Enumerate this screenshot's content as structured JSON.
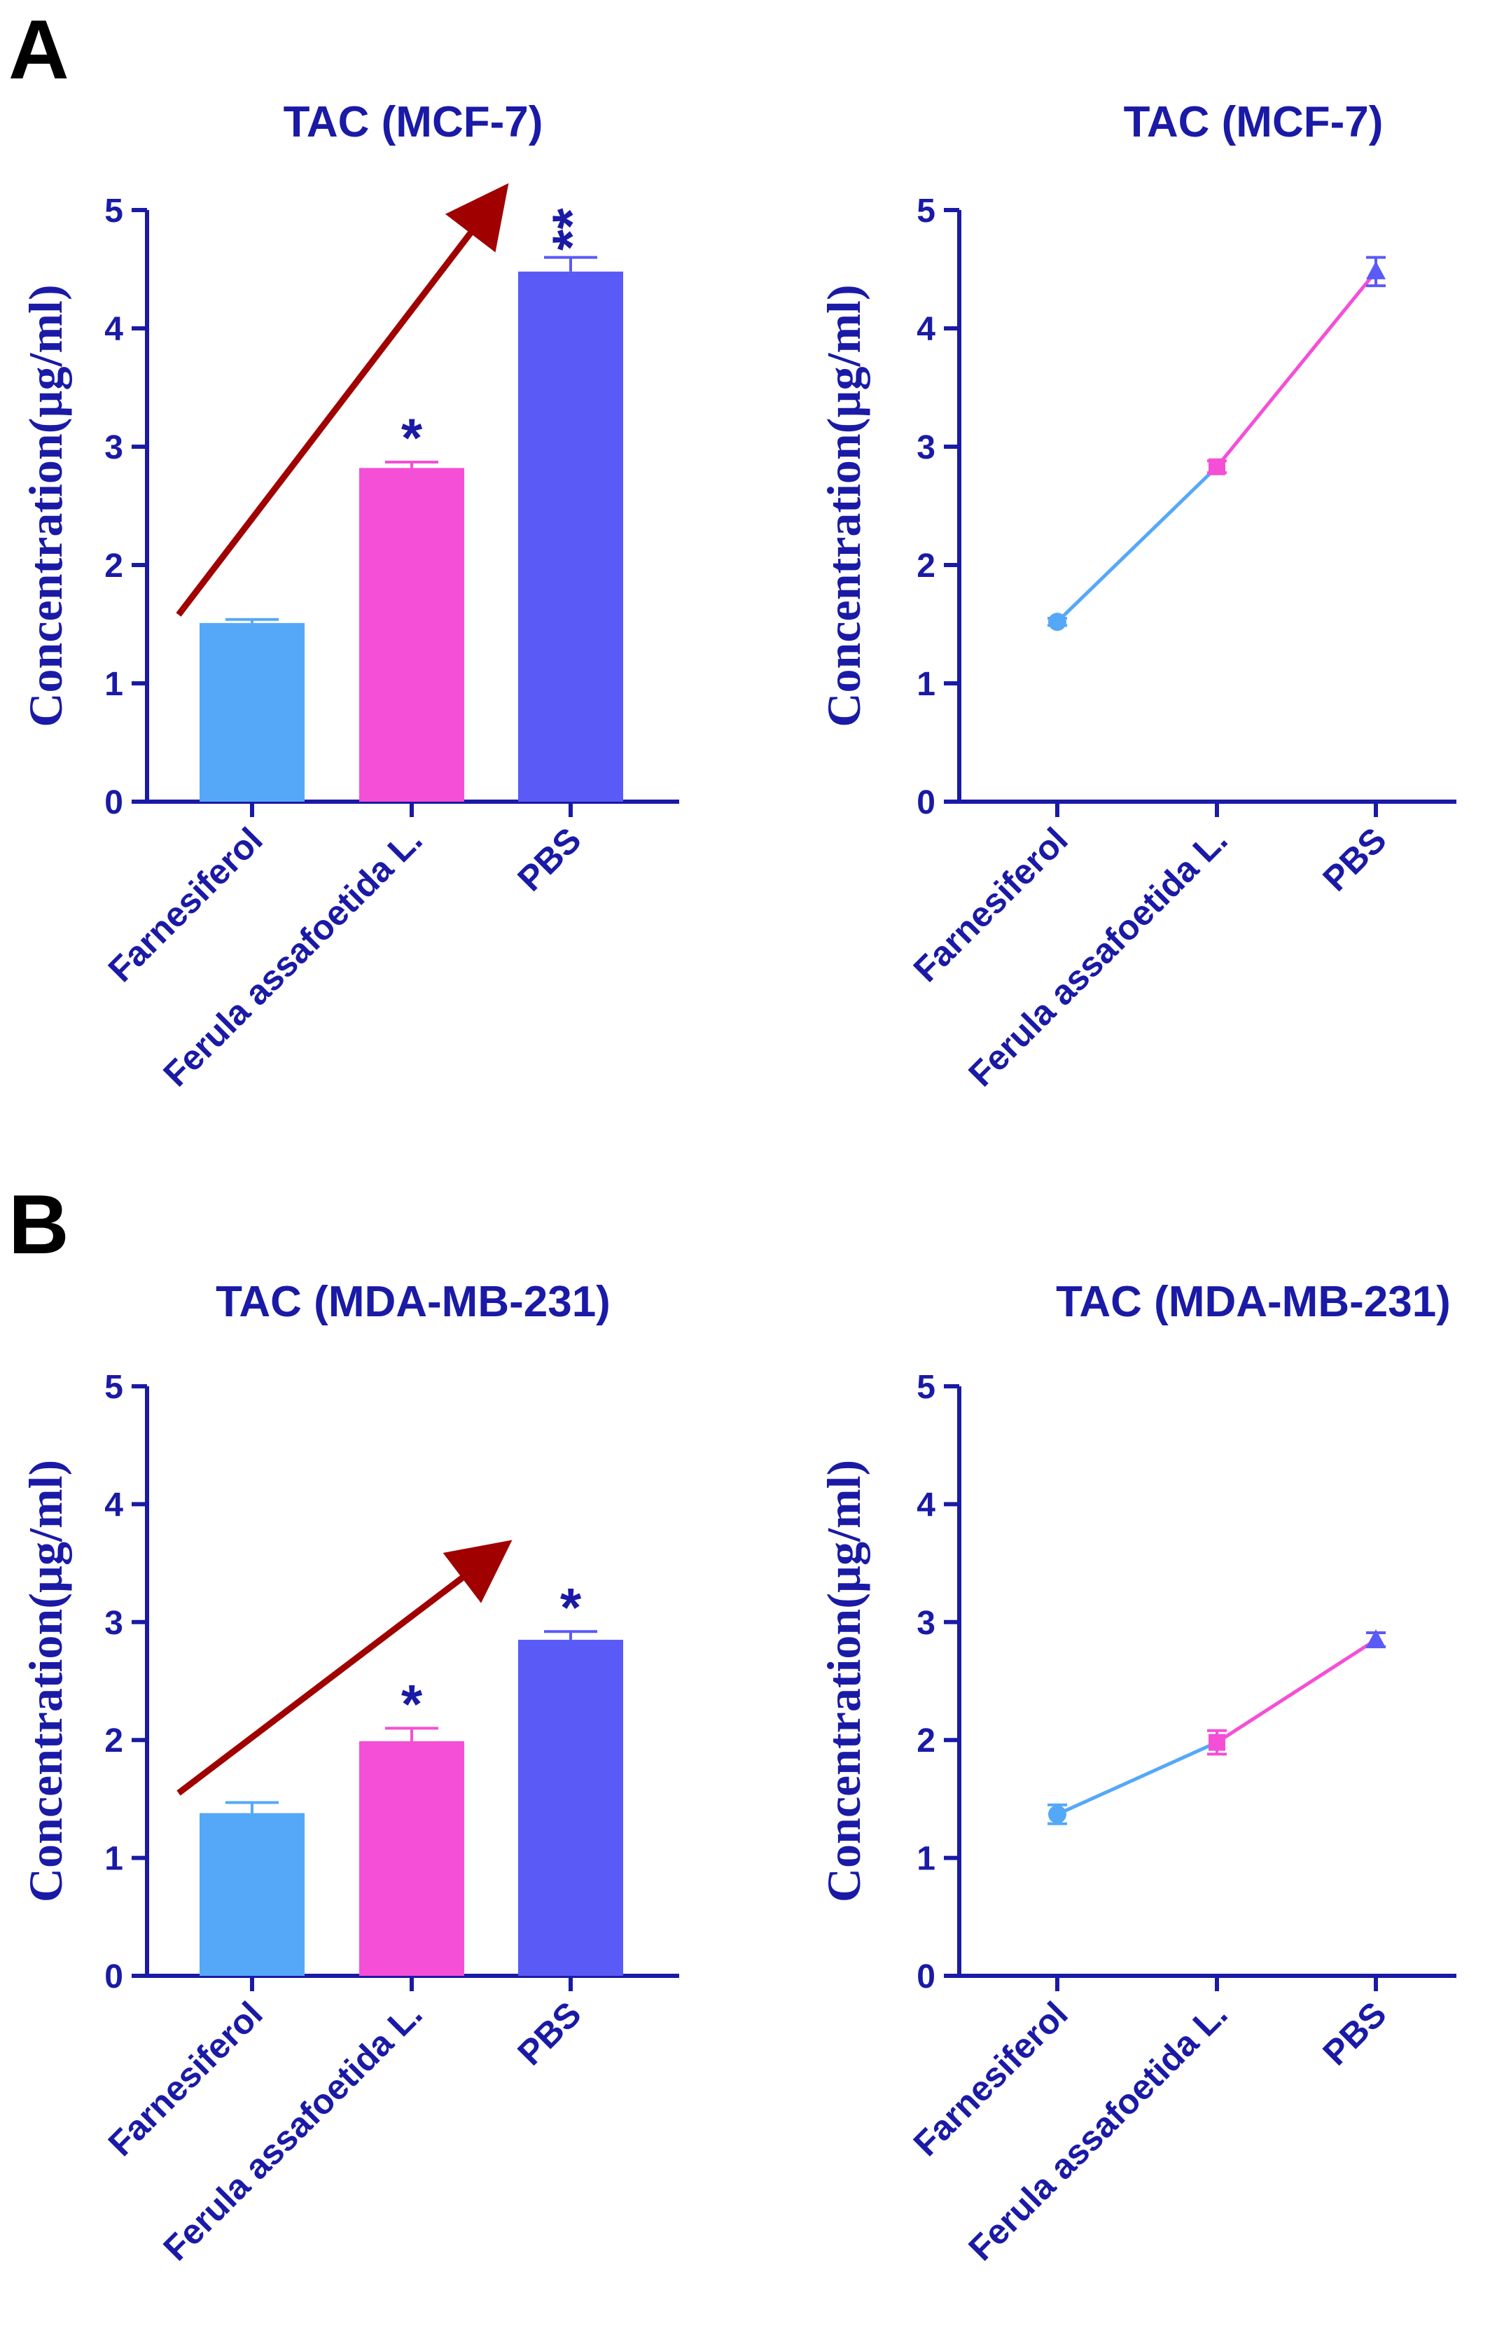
{
  "panels": [
    {
      "letter": "A"
    },
    {
      "letter": "B"
    }
  ],
  "style": {
    "axis_color": "#1a1aa6",
    "text_color": "#1a1aa6",
    "arrow_color": "#a00000"
  },
  "chart_data": [
    {
      "type": "bar",
      "title": "TAC (MCF-7)",
      "xlabel": "",
      "ylabel": "Concentration(µg/ml)",
      "ylim": [
        0,
        5
      ],
      "yticks": [
        0,
        1,
        2,
        3,
        4,
        5
      ],
      "grid": false,
      "categories": [
        "Farnesiferol",
        "Ferula assafoetida L.",
        "PBS"
      ],
      "values": [
        1.51,
        2.82,
        4.48
      ],
      "errors": [
        0.03,
        0.05,
        0.12
      ],
      "colors": [
        "#55a8f8",
        "#f44fd6",
        "#5a5af7"
      ],
      "annotations": [
        "",
        "*",
        "**"
      ],
      "trend_arrow": {
        "from": [
          0,
          1.58
        ],
        "to": [
          2,
          5.1
        ]
      }
    },
    {
      "type": "line",
      "title": "TAC (MCF-7)",
      "xlabel": "",
      "ylabel": "Concentration(µg/ml)",
      "ylim": [
        0,
        5
      ],
      "yticks": [
        0,
        1,
        2,
        3,
        4,
        5
      ],
      "grid": false,
      "categories": [
        "Farnesiferol",
        "Ferula assafoetida L.",
        "PBS"
      ],
      "values": [
        1.52,
        2.83,
        4.48
      ],
      "errors": [
        0.03,
        0.05,
        0.12
      ],
      "colors": [
        "#55a8f8",
        "#f44fd6",
        "#5a5af7"
      ],
      "markers": [
        "circle",
        "square",
        "triangle"
      ]
    },
    {
      "type": "bar",
      "title": "TAC (MDA-MB-231)",
      "xlabel": "",
      "ylabel": "Concentration(µg/ml)",
      "ylim": [
        0,
        5
      ],
      "yticks": [
        0,
        1,
        2,
        3,
        4,
        5
      ],
      "grid": false,
      "categories": [
        "Farnesiferol",
        "Ferula assafoetida L.",
        "PBS"
      ],
      "values": [
        1.38,
        1.99,
        2.85
      ],
      "errors": [
        0.09,
        0.11,
        0.07
      ],
      "colors": [
        "#55a8f8",
        "#f44fd6",
        "#5a5af7"
      ],
      "annotations": [
        "",
        "*",
        "*"
      ],
      "trend_arrow": {
        "from": [
          0,
          1.55
        ],
        "to": [
          2,
          3.6
        ]
      }
    },
    {
      "type": "line",
      "title": "TAC (MDA-MB-231)",
      "xlabel": "",
      "ylabel": "Concentration(µg/ml)",
      "ylim": [
        0,
        5
      ],
      "yticks": [
        0,
        1,
        2,
        3,
        4,
        5
      ],
      "grid": false,
      "categories": [
        "Farnesiferol",
        "Ferula assafoetida L.",
        "PBS"
      ],
      "values": [
        1.37,
        1.98,
        2.85
      ],
      "errors": [
        0.08,
        0.1,
        0.06
      ],
      "colors": [
        "#55a8f8",
        "#f44fd6",
        "#5a5af7"
      ],
      "markers": [
        "circle",
        "square",
        "triangle"
      ]
    }
  ]
}
